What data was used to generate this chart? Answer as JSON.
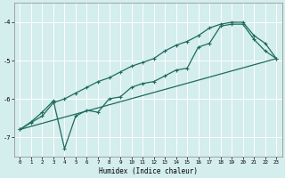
{
  "xlabel": "Humidex (Indice chaleur)",
  "bg_color": "#d4eded",
  "grid_color": "#ffffff",
  "line_color": "#1e6b5e",
  "xlim": [
    -0.5,
    23.5
  ],
  "ylim": [
    -7.5,
    -3.5
  ],
  "yticks": [
    -7,
    -6,
    -5,
    -4
  ],
  "xticks": [
    0,
    1,
    2,
    3,
    4,
    5,
    6,
    7,
    8,
    9,
    10,
    11,
    12,
    13,
    14,
    15,
    16,
    17,
    18,
    19,
    20,
    21,
    22,
    23
  ],
  "series_upper_x": [
    0,
    1,
    2,
    3,
    4,
    5,
    6,
    7,
    8,
    9,
    10,
    11,
    12,
    13,
    14,
    15,
    16,
    17,
    18,
    19,
    20,
    21,
    22,
    23
  ],
  "series_upper_y": [
    -6.8,
    -6.62,
    -6.45,
    -6.1,
    -6.0,
    -5.85,
    -5.7,
    -5.55,
    -5.45,
    -5.3,
    -5.15,
    -5.05,
    -4.95,
    -4.75,
    -4.6,
    -4.5,
    -4.35,
    -4.15,
    -4.05,
    -4.0,
    -4.0,
    -4.35,
    -4.55,
    -4.95
  ],
  "series_jagged_x": [
    0,
    1,
    2,
    3,
    4,
    5,
    6,
    7,
    8,
    9,
    10,
    11,
    12,
    13,
    14,
    15,
    16,
    17,
    18,
    19,
    20,
    21,
    22,
    23
  ],
  "series_jagged_y": [
    -6.8,
    -6.6,
    -6.35,
    -6.05,
    -7.3,
    -6.45,
    -6.3,
    -6.35,
    -6.0,
    -5.95,
    -5.7,
    -5.6,
    -5.55,
    -5.4,
    -5.25,
    -5.2,
    -4.65,
    -4.55,
    -4.1,
    -4.05,
    -4.05,
    -4.45,
    -4.75,
    -4.95
  ],
  "series_line_x": [
    0,
    23
  ],
  "series_line_y": [
    -6.8,
    -4.95
  ]
}
